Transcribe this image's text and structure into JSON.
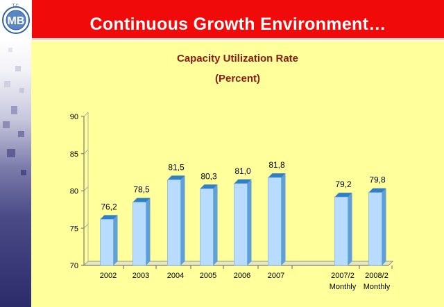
{
  "header": {
    "title": "Continuous Growth Environment…",
    "logo": {
      "top_text": "T.C.",
      "letters": "MB",
      "icon": "central-bank-seal-logo",
      "ring_text": "MERKEZ BANKASI"
    }
  },
  "colors": {
    "header_red": "#f00a0a",
    "panel_yellow": "#ffff9c",
    "title_brown": "#8b1a12",
    "bar_front": "#b8dcff",
    "bar_side": "#5f9fd8",
    "bar_top": "#2f7fc5"
  },
  "chart_data": {
    "type": "bar",
    "title": "Capacity Utilization Rate",
    "subtitle": "(Percent)",
    "xlabel": "",
    "ylabel": "",
    "ylim": [
      70,
      90
    ],
    "yticks": [
      70,
      75,
      80,
      85,
      90
    ],
    "grid": false,
    "legend": "none",
    "categories": [
      "2002",
      "2003",
      "2004",
      "2005",
      "2006",
      "2007",
      "2007/2 Monthly",
      "2008/2 Monthly"
    ],
    "category_lines": [
      [
        "2002"
      ],
      [
        "2003"
      ],
      [
        "2004"
      ],
      [
        "2005"
      ],
      [
        "2006"
      ],
      [
        "2007"
      ],
      [
        "2007/2",
        "Monthly"
      ],
      [
        "2008/2",
        "Monthly"
      ]
    ],
    "values": [
      76.2,
      78.5,
      81.5,
      80.3,
      81.0,
      81.8,
      79.2,
      79.8
    ],
    "value_labels": [
      "76,2",
      "78,5",
      "81,5",
      "80,3",
      "81,0",
      "81,8",
      "79,2",
      "79,8"
    ]
  }
}
